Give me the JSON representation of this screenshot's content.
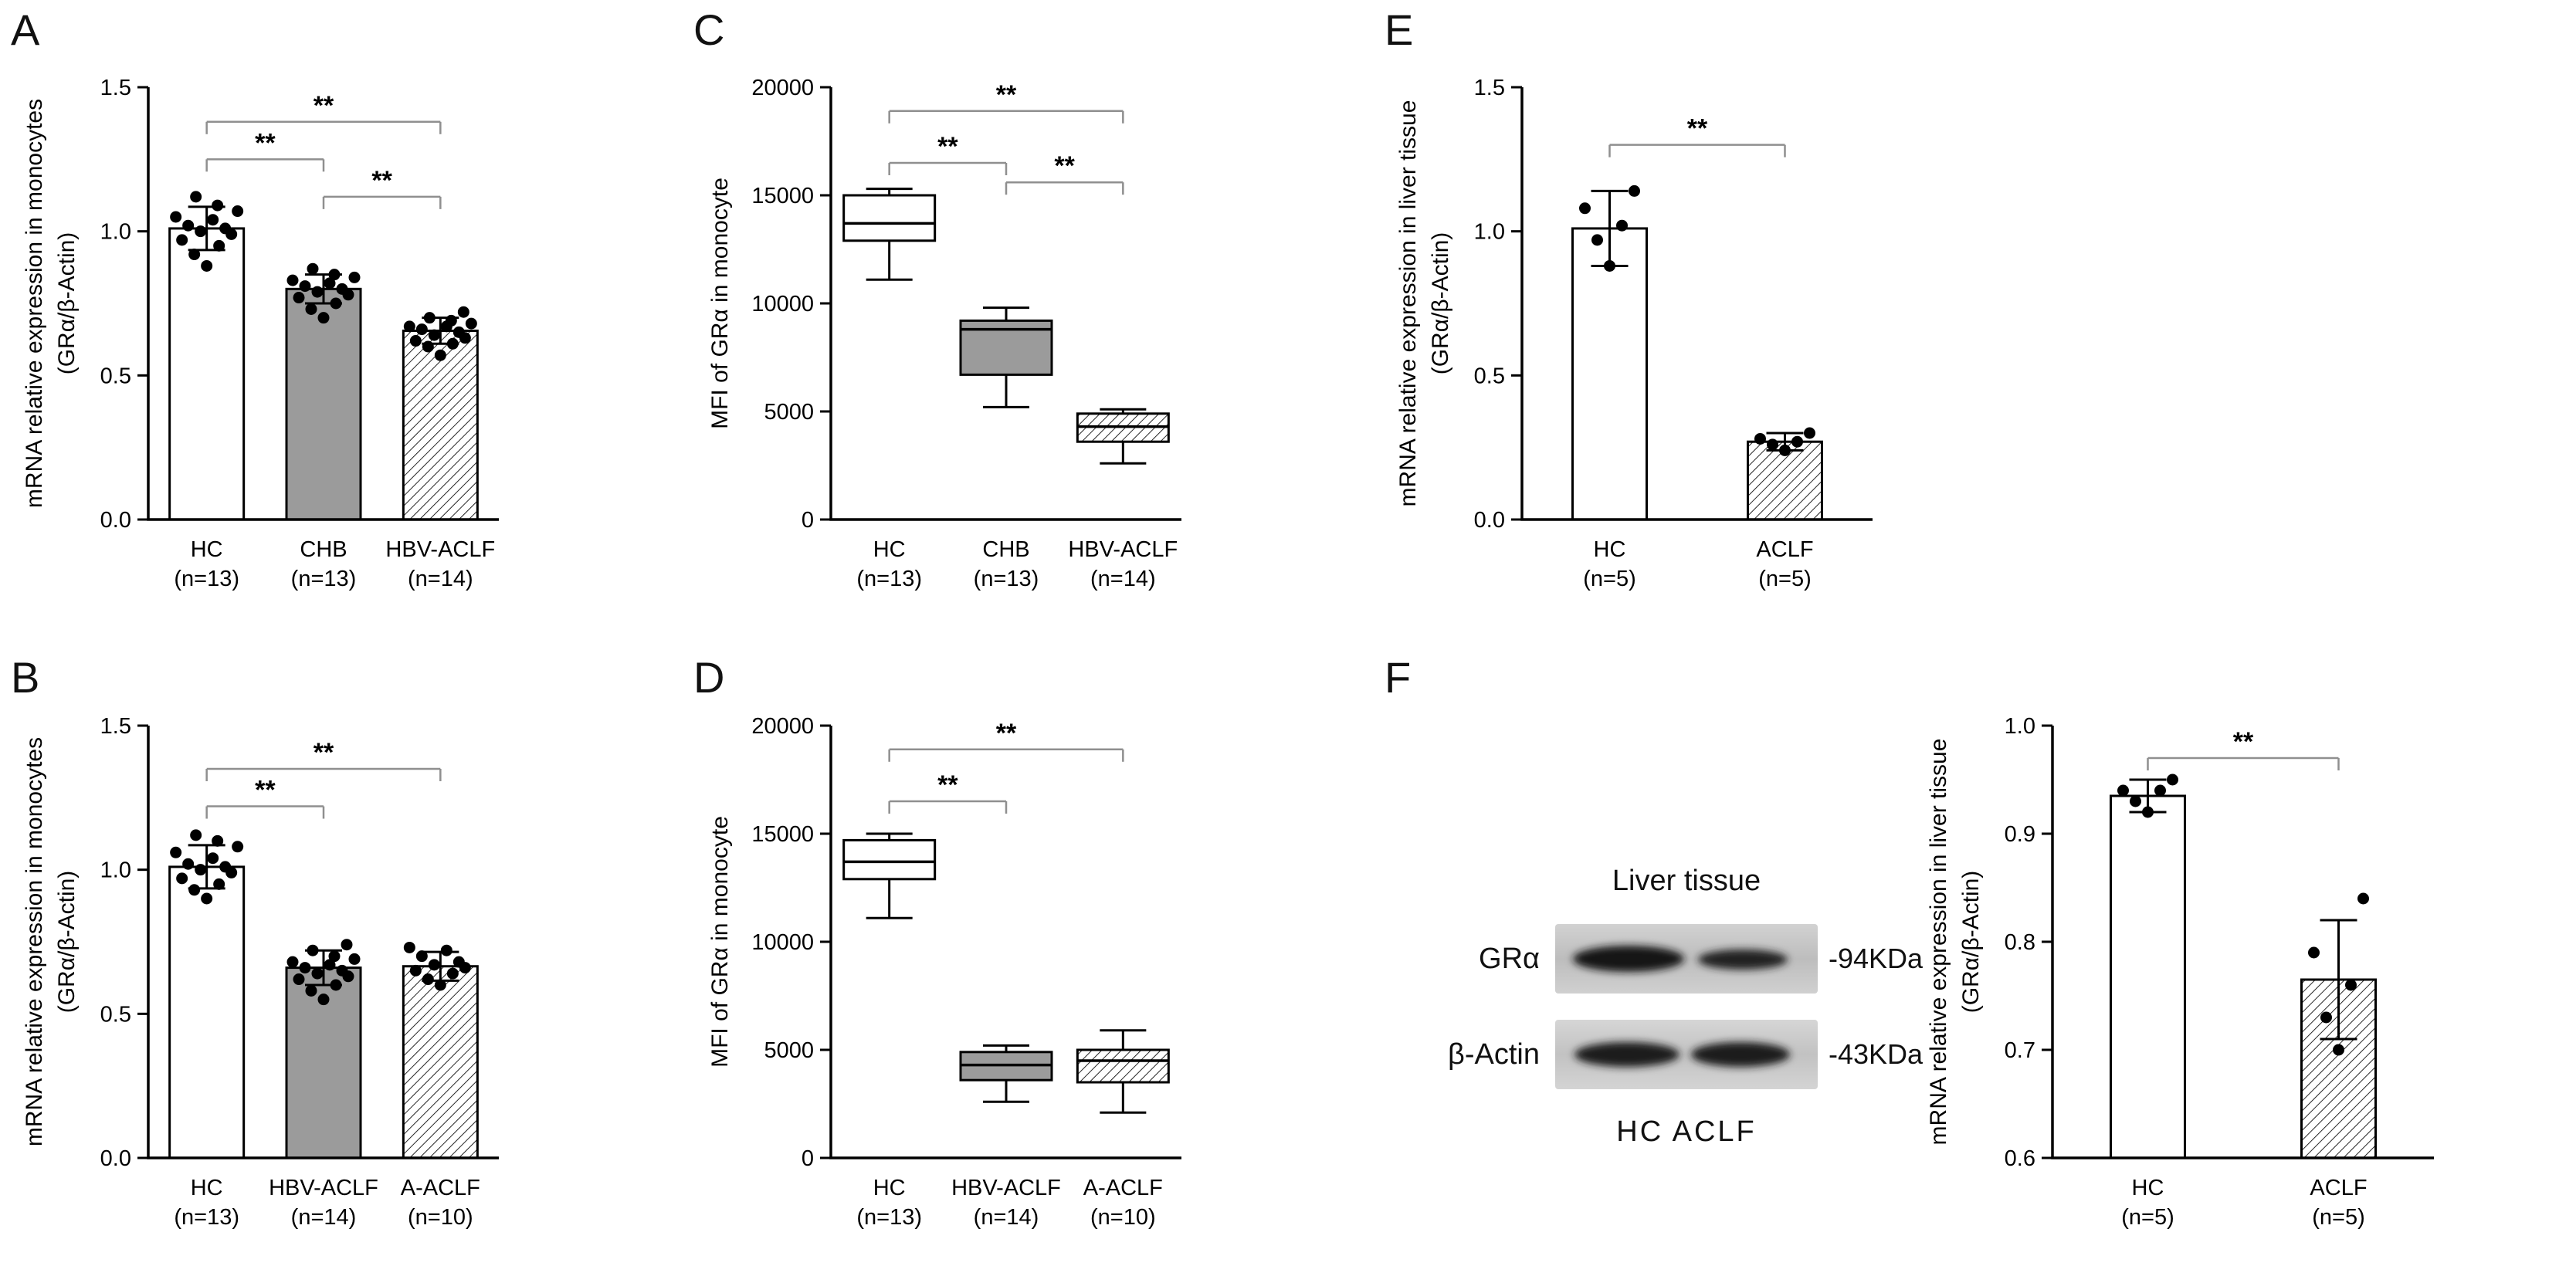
{
  "colors": {
    "gray_fill": "#9b9b9b",
    "bracket": "#8f8f8f",
    "axis": "#000000",
    "dot": "#000000"
  },
  "western_blot": {
    "title": "Liver tissue",
    "rows": [
      {
        "protein": "GRα",
        "size": "-94KDa"
      },
      {
        "protein": "β-Actin",
        "size": "-43KDa"
      }
    ],
    "lane_labels": "HC ACLF"
  },
  "chart_data": [
    {
      "panel": "A",
      "type": "bar",
      "ylabel": [
        "mRNA relative expression in monocytes",
        "(GRα/β-Actin)"
      ],
      "ylim": [
        0,
        1.5
      ],
      "yticks": [
        {
          "v": 0,
          "label": "0.0"
        },
        {
          "v": 0.5,
          "label": "0.5"
        },
        {
          "v": 1.0,
          "label": "1.0"
        },
        {
          "v": 1.5,
          "label": "1.5"
        }
      ],
      "groups": [
        {
          "name": "HC",
          "n": "(n=13)",
          "fill": "white",
          "mean": 1.01,
          "sd": 0.075,
          "dots": [
            0.88,
            0.92,
            0.95,
            0.97,
            0.99,
            1.0,
            1.01,
            1.02,
            1.04,
            1.05,
            1.07,
            1.09,
            1.12
          ]
        },
        {
          "name": "CHB",
          "n": "(n=13)",
          "fill": "gray",
          "mean": 0.8,
          "sd": 0.05,
          "dots": [
            0.7,
            0.73,
            0.75,
            0.77,
            0.78,
            0.79,
            0.8,
            0.81,
            0.82,
            0.83,
            0.84,
            0.85,
            0.87
          ]
        },
        {
          "name": "HBV-ACLF",
          "n": "(n=14)",
          "fill": "hatch",
          "mean": 0.655,
          "sd": 0.045,
          "dots": [
            0.57,
            0.6,
            0.61,
            0.62,
            0.63,
            0.64,
            0.65,
            0.66,
            0.67,
            0.67,
            0.68,
            0.69,
            0.7,
            0.72
          ]
        }
      ],
      "brackets": [
        {
          "from": 0,
          "to": 2,
          "y": 1.38,
          "label": "**"
        },
        {
          "from": 0,
          "to": 1,
          "y": 1.25,
          "label": "**"
        },
        {
          "from": 1,
          "to": 2,
          "y": 1.12,
          "label": "**"
        }
      ]
    },
    {
      "panel": "B",
      "type": "bar",
      "ylabel": [
        "mRNA relative expression in monocytes",
        "(GRα/β-Actin)"
      ],
      "ylim": [
        0,
        1.5
      ],
      "yticks": [
        {
          "v": 0,
          "label": "0.0"
        },
        {
          "v": 0.5,
          "label": "0.5"
        },
        {
          "v": 1.0,
          "label": "1.0"
        },
        {
          "v": 1.5,
          "label": "1.5"
        }
      ],
      "groups": [
        {
          "name": "HC",
          "n": "(n=13)",
          "fill": "white",
          "mean": 1.01,
          "sd": 0.075,
          "dots": [
            0.9,
            0.93,
            0.95,
            0.97,
            0.99,
            1.0,
            1.01,
            1.02,
            1.04,
            1.06,
            1.08,
            1.1,
            1.12
          ]
        },
        {
          "name": "HBV-ACLF",
          "n": "(n=14)",
          "fill": "gray",
          "mean": 0.66,
          "sd": 0.06,
          "dots": [
            0.55,
            0.58,
            0.6,
            0.62,
            0.63,
            0.64,
            0.65,
            0.66,
            0.67,
            0.68,
            0.69,
            0.7,
            0.72,
            0.74
          ]
        },
        {
          "name": "A-ACLF",
          "n": "(n=10)",
          "fill": "hatch",
          "mean": 0.665,
          "sd": 0.05,
          "dots": [
            0.6,
            0.62,
            0.64,
            0.65,
            0.66,
            0.67,
            0.68,
            0.7,
            0.72,
            0.73
          ]
        }
      ],
      "brackets": [
        {
          "from": 0,
          "to": 2,
          "y": 1.35,
          "label": "**"
        },
        {
          "from": 0,
          "to": 1,
          "y": 1.22,
          "label": "**"
        }
      ]
    },
    {
      "panel": "C",
      "type": "box",
      "ylabel": [
        "MFI of GRα in monocyte"
      ],
      "ylim": [
        0,
        20000
      ],
      "yticks": [
        {
          "v": 0,
          "label": "0"
        },
        {
          "v": 5000,
          "label": "5000"
        },
        {
          "v": 10000,
          "label": "10000"
        },
        {
          "v": 15000,
          "label": "15000"
        },
        {
          "v": 20000,
          "label": "20000"
        }
      ],
      "groups": [
        {
          "name": "HC",
          "n": "(n=13)",
          "fill": "white",
          "whisker_low": 11100,
          "q1": 12900,
          "median": 13700,
          "q3": 15000,
          "whisker_high": 15300
        },
        {
          "name": "CHB",
          "n": "(n=13)",
          "fill": "gray",
          "whisker_low": 5200,
          "q1": 6700,
          "median": 8800,
          "q3": 9200,
          "whisker_high": 9800
        },
        {
          "name": "HBV-ACLF",
          "n": "(n=14)",
          "fill": "hatch",
          "whisker_low": 2600,
          "q1": 3600,
          "median": 4300,
          "q3": 4900,
          "whisker_high": 5100
        }
      ],
      "brackets": [
        {
          "from": 0,
          "to": 2,
          "y": 18900,
          "label": "**"
        },
        {
          "from": 0,
          "to": 1,
          "y": 16500,
          "label": "**"
        },
        {
          "from": 1,
          "to": 2,
          "y": 15600,
          "label": "**"
        }
      ]
    },
    {
      "panel": "D",
      "type": "box",
      "ylabel": [
        "MFI of GRα in monocyte"
      ],
      "ylim": [
        0,
        20000
      ],
      "yticks": [
        {
          "v": 0,
          "label": "0"
        },
        {
          "v": 5000,
          "label": "5000"
        },
        {
          "v": 10000,
          "label": "10000"
        },
        {
          "v": 15000,
          "label": "15000"
        },
        {
          "v": 20000,
          "label": "20000"
        }
      ],
      "groups": [
        {
          "name": "HC",
          "n": "(n=13)",
          "fill": "white",
          "whisker_low": 11100,
          "q1": 12900,
          "median": 13700,
          "q3": 14700,
          "whisker_high": 15000
        },
        {
          "name": "HBV-ACLF",
          "n": "(n=14)",
          "fill": "gray",
          "whisker_low": 2600,
          "q1": 3600,
          "median": 4300,
          "q3": 4900,
          "whisker_high": 5200
        },
        {
          "name": "A-ACLF",
          "n": "(n=10)",
          "fill": "hatch",
          "whisker_low": 2100,
          "q1": 3500,
          "median": 4500,
          "q3": 5000,
          "whisker_high": 5900
        }
      ],
      "brackets": [
        {
          "from": 0,
          "to": 2,
          "y": 18900,
          "label": "**"
        },
        {
          "from": 0,
          "to": 1,
          "y": 16500,
          "label": "**"
        }
      ]
    },
    {
      "panel": "E",
      "type": "bar",
      "ylabel": [
        "mRNA relative expression in liver tissue",
        "(GRα/β-Actin)"
      ],
      "ylim": [
        0,
        1.5
      ],
      "yticks": [
        {
          "v": 0,
          "label": "0.0"
        },
        {
          "v": 0.5,
          "label": "0.5"
        },
        {
          "v": 1.0,
          "label": "1.0"
        },
        {
          "v": 1.5,
          "label": "1.5"
        }
      ],
      "groups": [
        {
          "name": "HC",
          "n": "(n=5)",
          "fill": "white",
          "mean": 1.01,
          "sd": 0.13,
          "dots": [
            0.88,
            0.97,
            1.02,
            1.08,
            1.14
          ]
        },
        {
          "name": "ACLF",
          "n": "(n=5)",
          "fill": "hatch",
          "mean": 0.27,
          "sd": 0.03,
          "dots": [
            0.24,
            0.26,
            0.27,
            0.28,
            0.3
          ]
        }
      ],
      "brackets": [
        {
          "from": 0,
          "to": 1,
          "y": 1.3,
          "label": "**"
        }
      ]
    },
    {
      "panel": "F",
      "type": "bar",
      "ylabel": [
        "mRNA relative expression in liver tissue",
        "(GRα/β-Actin)"
      ],
      "ylim": [
        0.6,
        1.0
      ],
      "yticks": [
        {
          "v": 0.6,
          "label": "0.6"
        },
        {
          "v": 0.7,
          "label": "0.7"
        },
        {
          "v": 0.8,
          "label": "0.8"
        },
        {
          "v": 0.9,
          "label": "0.9"
        },
        {
          "v": 1.0,
          "label": "1.0"
        }
      ],
      "groups": [
        {
          "name": "HC",
          "n": "(n=5)",
          "fill": "white",
          "mean": 0.935,
          "sd": 0.015,
          "dots": [
            0.92,
            0.93,
            0.94,
            0.94,
            0.95
          ]
        },
        {
          "name": "ACLF",
          "n": "(n=5)",
          "fill": "hatch",
          "mean": 0.765,
          "sd": 0.055,
          "dots": [
            0.7,
            0.73,
            0.76,
            0.79,
            0.84
          ]
        }
      ],
      "brackets": [
        {
          "from": 0,
          "to": 1,
          "y": 0.97,
          "label": "**"
        }
      ]
    }
  ]
}
